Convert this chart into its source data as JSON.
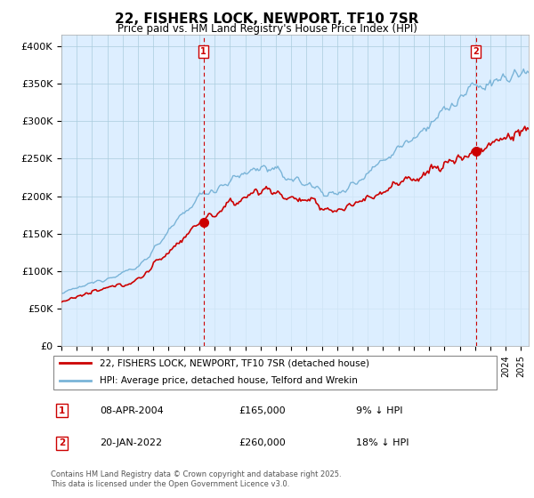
{
  "title": "22, FISHERS LOCK, NEWPORT, TF10 7SR",
  "subtitle": "Price paid vs. HM Land Registry's House Price Index (HPI)",
  "ylabel_ticks": [
    "£0",
    "£50K",
    "£100K",
    "£150K",
    "£200K",
    "£250K",
    "£300K",
    "£350K",
    "£400K"
  ],
  "ytick_values": [
    0,
    50000,
    100000,
    150000,
    200000,
    250000,
    300000,
    350000,
    400000
  ],
  "ylim": [
    0,
    415000
  ],
  "xlim_start": 1995.0,
  "xlim_end": 2025.5,
  "hpi_color": "#7ab4d8",
  "hpi_fill_color": "#dceeff",
  "price_color": "#cc0000",
  "marker1_date": 2004.27,
  "marker1_price": 165000,
  "marker2_date": 2022.05,
  "marker2_price": 260000,
  "legend_label1": "22, FISHERS LOCK, NEWPORT, TF10 7SR (detached house)",
  "legend_label2": "HPI: Average price, detached house, Telford and Wrekin",
  "annotation1_date": "08-APR-2004",
  "annotation1_price": "£165,000",
  "annotation1_hpi": "9% ↓ HPI",
  "annotation2_date": "20-JAN-2022",
  "annotation2_price": "£260,000",
  "annotation2_hpi": "18% ↓ HPI",
  "footer": "Contains HM Land Registry data © Crown copyright and database right 2025.\nThis data is licensed under the Open Government Licence v3.0.",
  "background_color": "#ddeeff",
  "grid_color": "#aaccdd"
}
